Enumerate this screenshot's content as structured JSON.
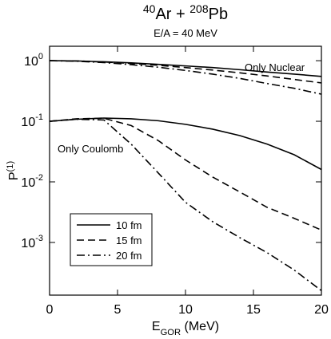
{
  "chart_data": {
    "type": "line",
    "title": [
      {
        "text": "40",
        "sup": true
      },
      {
        "text": "Ar + "
      },
      {
        "text": "208",
        "sup": true
      },
      {
        "text": "Pb"
      }
    ],
    "subtitle": "E/A = 40 MeV",
    "xlabel": [
      {
        "text": "E"
      },
      {
        "text": "GQR",
        "sub": true
      },
      {
        "text": " (MeV)"
      }
    ],
    "ylabel": [
      {
        "text": "P"
      },
      {
        "text": "(1)",
        "sup": true
      }
    ],
    "log_y": true,
    "xlim": [
      0,
      20
    ],
    "xticks": [
      0,
      5,
      10,
      15,
      20
    ],
    "ylim": [
      0.000135,
      1.73
    ],
    "yticks": [
      {
        "value": 1,
        "base": "10",
        "exponent": "0"
      },
      {
        "value": 0.1,
        "base": "10",
        "exponent": "-1"
      },
      {
        "value": 0.01,
        "base": "10",
        "exponent": "-2"
      },
      {
        "value": 0.001,
        "base": "10",
        "exponent": "-3"
      }
    ],
    "legend": "lower-left",
    "x": [
      0,
      2,
      4,
      6,
      8,
      10,
      12,
      14,
      16,
      18,
      20
    ],
    "groups": [
      {
        "label": "Only Nuclear",
        "series": [
          {
            "name": "10 fm",
            "color": "#000000",
            "dash": "solid",
            "values": [
              1.0,
              0.99,
              0.96,
              0.92,
              0.87,
              0.82,
              0.77,
              0.71,
              0.65,
              0.6,
              0.55
            ]
          },
          {
            "name": "15 fm",
            "color": "#000000",
            "dash": "dashed",
            "values": [
              1.0,
              0.99,
              0.95,
              0.9,
              0.84,
              0.77,
              0.7,
              0.63,
              0.56,
              0.49,
              0.43
            ]
          },
          {
            "name": "20 fm",
            "color": "#000000",
            "dash": "dashdot",
            "values": [
              1.0,
              0.98,
              0.93,
              0.86,
              0.78,
              0.69,
              0.6,
              0.51,
              0.42,
              0.35,
              0.28
            ]
          }
        ]
      },
      {
        "label": "Only Coulomb",
        "series": [
          {
            "color": "#000000",
            "dash": "solid",
            "values": [
              0.1,
              0.108,
              0.113,
              0.11,
              0.102,
              0.089,
              0.074,
              0.058,
              0.042,
              0.028,
              0.016
            ]
          },
          {
            "color": "#000000",
            "dash": "dashed",
            "values": [
              0.1,
              0.11,
              0.112,
              0.085,
              0.048,
              0.023,
              0.012,
              0.0068,
              0.0038,
              0.0025,
              0.0016
            ]
          },
          {
            "color": "#000000",
            "dash": "dashdot",
            "values": [
              0.1,
              0.108,
              0.105,
              0.042,
              0.014,
              0.0046,
              0.0022,
              0.0012,
              0.00068,
              0.00035,
              0.00016
            ]
          }
        ]
      }
    ]
  }
}
